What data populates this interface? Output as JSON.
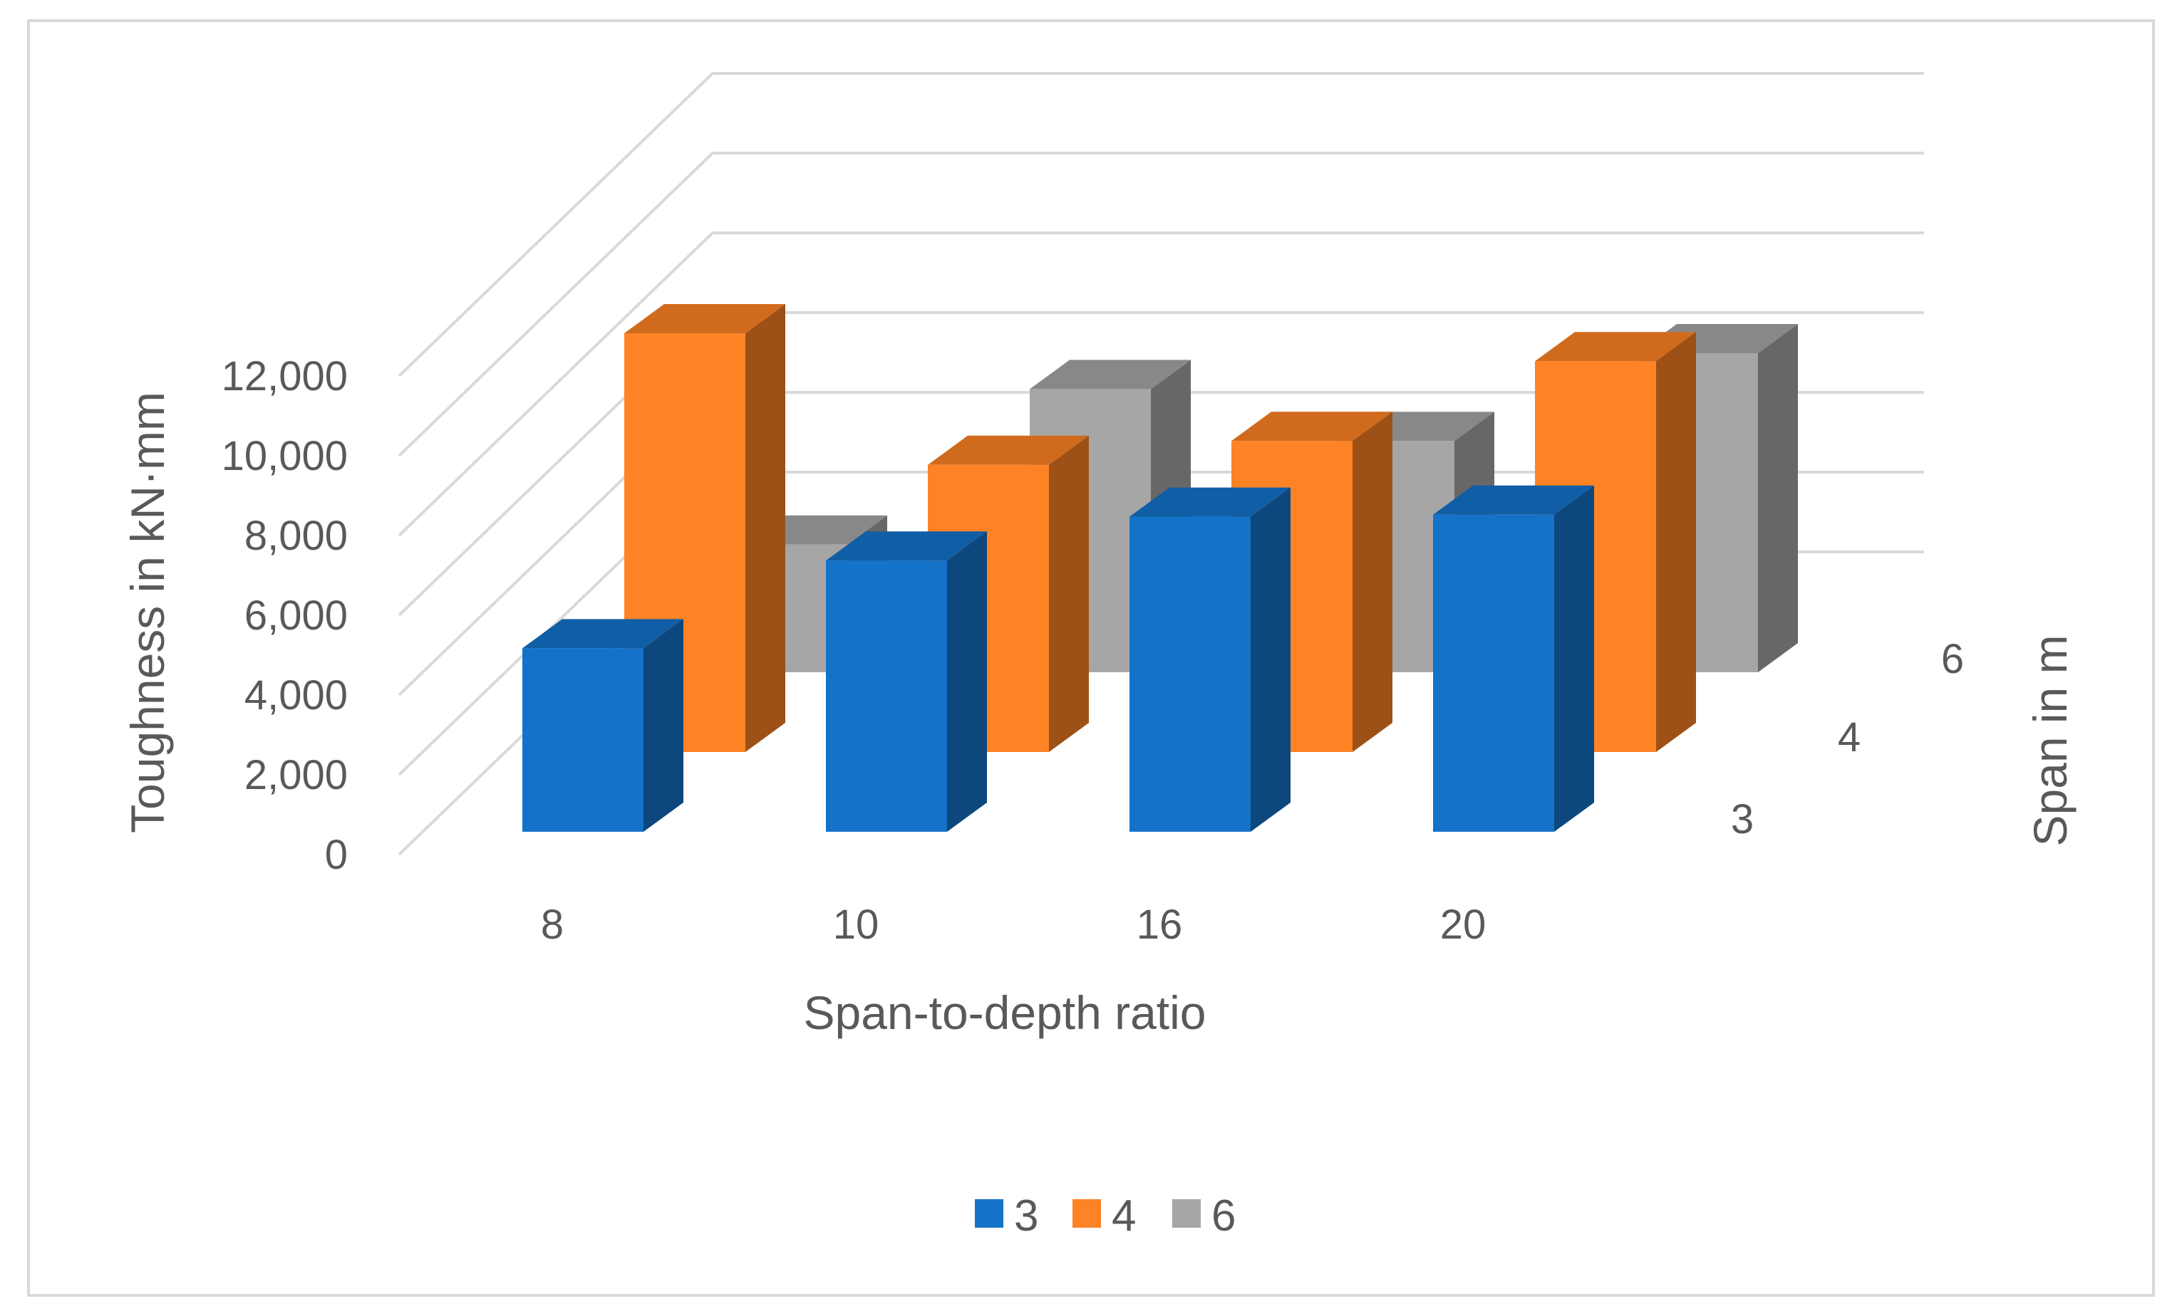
{
  "chart_data": {
    "type": "bar",
    "subtype": "3d-column",
    "title": "",
    "xlabel": "Span-to-depth ratio",
    "ylabel": "Toughness in kN·mm",
    "zlabel": "Span in m",
    "categories": [
      "8",
      "10",
      "16",
      "20"
    ],
    "depth_categories": [
      "3",
      "4",
      "6"
    ],
    "yticks": [
      "0",
      "2,000",
      "4,000",
      "6,000",
      "8,000",
      "10,000",
      "12,000"
    ],
    "ylim": [
      0,
      12000
    ],
    "grid": true,
    "legend_position": "bottom",
    "series": [
      {
        "name": "3",
        "values": [
          4600,
          6800,
          7900,
          7950
        ],
        "color": "#1473c9"
      },
      {
        "name": "4",
        "values": [
          10500,
          7200,
          7800,
          9800
        ],
        "color": "#fe8325"
      },
      {
        "name": "6",
        "values": [
          3200,
          7100,
          5800,
          8000
        ],
        "color": "#a6a6a6"
      }
    ]
  }
}
